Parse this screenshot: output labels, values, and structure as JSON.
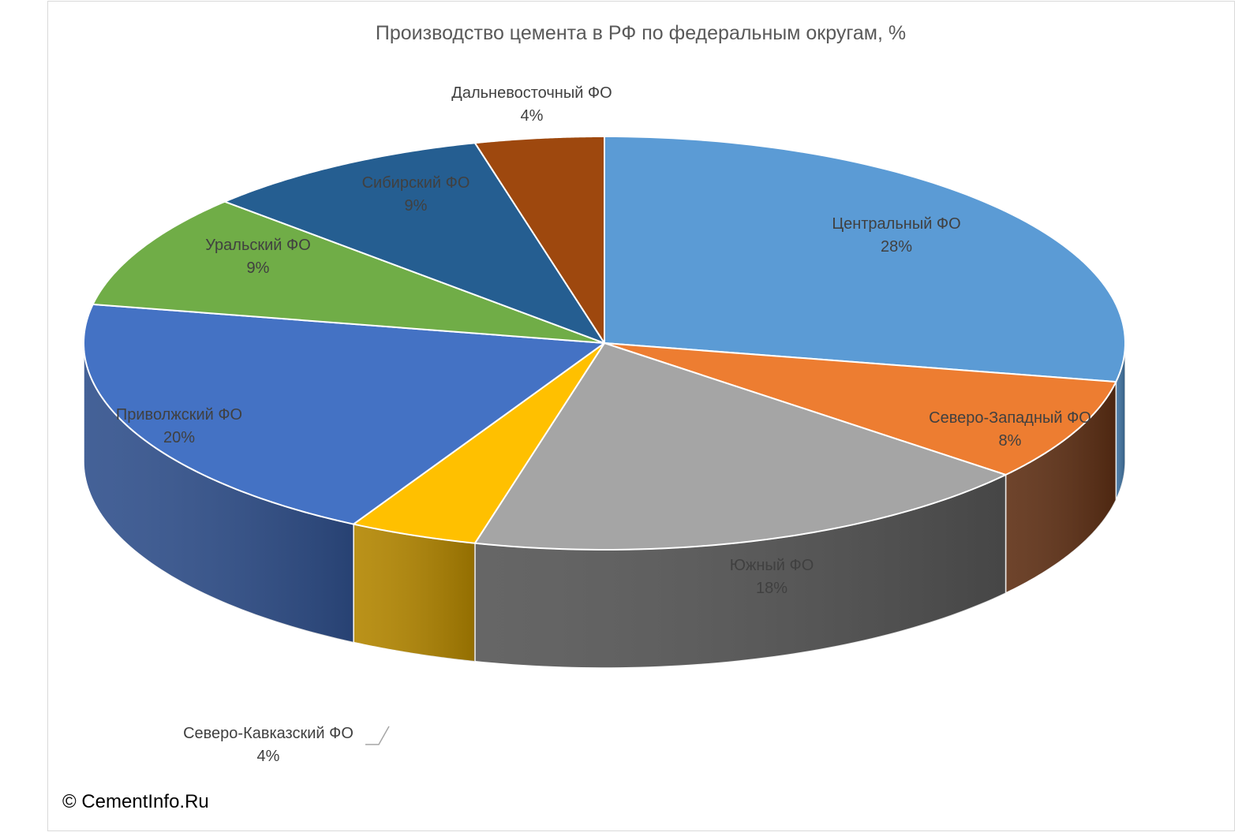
{
  "chart_data": {
    "type": "pie",
    "title": "Производство цемента в РФ по федеральным округам, %",
    "slices": [
      {
        "label": "Центральный ФО",
        "value": 28,
        "value_label": "28%",
        "color": "#5b9bd5",
        "side_color": "#3f72a0"
      },
      {
        "label": "Северо-Западный ФО",
        "value": 8,
        "value_label": "8%",
        "color": "#ed7d31",
        "side_color": "#5e2f14"
      },
      {
        "label": "Южный ФО",
        "value": 18,
        "value_label": "18%",
        "color": "#a5a5a5",
        "side_color": "#555555"
      },
      {
        "label": "Северо-Кавказский ФО",
        "value": 4,
        "value_label": "4%",
        "color": "#ffc000",
        "side_color": "#b38600"
      },
      {
        "label": "Приволжский ФО",
        "value": 20,
        "value_label": "20%",
        "color": "#4472c4",
        "side_color": "#30508c"
      },
      {
        "label": "Уральский ФО",
        "value": 9,
        "value_label": "9%",
        "color": "#70ad47",
        "side_color": "#4e7a32"
      },
      {
        "label": "Сибирский ФО",
        "value": 9,
        "value_label": "9%",
        "color": "#255e91",
        "side_color": "#1a4266"
      },
      {
        "label": "Дальневосточный ФО",
        "value": 4,
        "value_label": "4%",
        "color": "#9e480e",
        "side_color": "#5e2f14"
      }
    ],
    "legend": "none",
    "style": "3d-pie",
    "label_text_color": "#404040",
    "title_color": "#595959"
  },
  "footer": {
    "copyright": "© CementInfo.Ru"
  }
}
